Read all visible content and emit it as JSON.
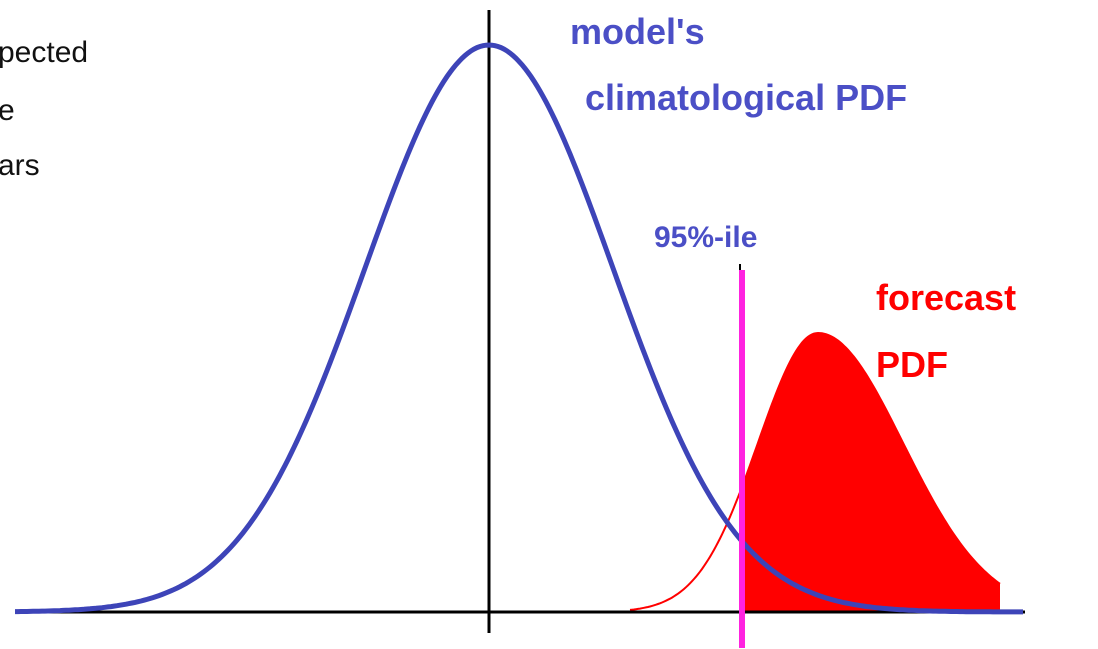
{
  "left_text": [
    "pected",
    "e",
    "ars"
  ],
  "labels": {
    "climatology": [
      "model's",
      "climatological PDF"
    ],
    "percentile": "95%-ile",
    "forecast": [
      "forecast",
      "PDF"
    ]
  }
}
